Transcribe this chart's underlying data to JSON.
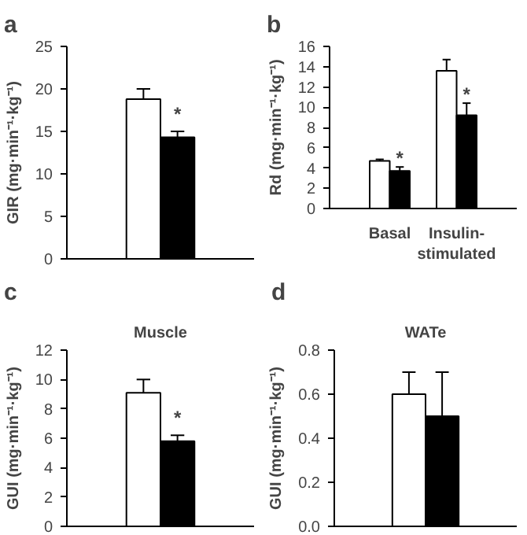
{
  "chart_data": [
    {
      "type": "bar",
      "title": "a",
      "ylabel": "GIR (mg·min⁻¹·kg⁻¹)",
      "categories": [
        null
      ],
      "ylim": [
        0,
        25
      ],
      "yticks": [
        0,
        5,
        10,
        15,
        20,
        25
      ],
      "series": [
        {
          "color": "#ffffff",
          "values": [
            18.8
          ],
          "errors": [
            [
              18.8,
              20.0
            ]
          ]
        },
        {
          "color": "#000000",
          "values": [
            14.3
          ],
          "errors": [
            [
              14.3,
              15.0
            ]
          ]
        }
      ],
      "annotations": [
        "*"
      ]
    },
    {
      "type": "bar",
      "title": "b",
      "ylabel": "Rd (mg·min⁻¹·kg⁻¹)",
      "categories": [
        "Basal",
        "Insulin-stimulated"
      ],
      "ylim": [
        0,
        16
      ],
      "yticks": [
        0,
        2,
        4,
        6,
        8,
        10,
        12,
        14,
        16
      ],
      "series": [
        {
          "color": "#ffffff",
          "values": [
            4.7,
            13.6
          ],
          "errors": [
            [
              4.7,
              4.85
            ],
            [
              13.6,
              14.7
            ]
          ]
        },
        {
          "color": "#000000",
          "values": [
            3.7,
            9.2
          ],
          "errors": [
            [
              3.7,
              4.1
            ],
            [
              9.2,
              10.4
            ]
          ]
        }
      ],
      "annotations": [
        {
          "text": "*",
          "x": "Basal",
          "y": 5.0
        },
        {
          "text": "*",
          "x": "Insulin-stimulated",
          "y": 11.3
        }
      ]
    },
    {
      "type": "bar",
      "title": "c",
      "subtitle": "Muscle",
      "ylabel": "GUI (mg·min⁻¹·kg⁻¹)",
      "categories": [
        null
      ],
      "ylim": [
        0,
        12
      ],
      "yticks": [
        0,
        2,
        4,
        6,
        8,
        10,
        12
      ],
      "series": [
        {
          "color": "#ffffff",
          "values": [
            9.1
          ],
          "errors": [
            [
              9.1,
              10.0
            ]
          ]
        },
        {
          "color": "#000000",
          "values": [
            5.8
          ],
          "errors": [
            [
              5.8,
              6.2
            ]
          ]
        }
      ],
      "annotations": [
        "*"
      ]
    },
    {
      "type": "bar",
      "title": "d",
      "subtitle": "WATe",
      "ylabel": "GUI (mg·min⁻¹·kg⁻¹)",
      "categories": [
        null
      ],
      "ylim": [
        0,
        0.8
      ],
      "yticks": [
        {
          "value": 0,
          "label": "0.0"
        },
        0.2,
        0.4,
        0.6,
        0.8
      ],
      "series": [
        {
          "color": "#ffffff",
          "values": [
            0.6
          ],
          "errors": [
            [
              0.6,
              0.7
            ]
          ]
        },
        {
          "color": "#000000",
          "values": [
            0.5
          ],
          "errors": [
            [
              0.5,
              0.7
            ]
          ]
        }
      ]
    }
  ]
}
